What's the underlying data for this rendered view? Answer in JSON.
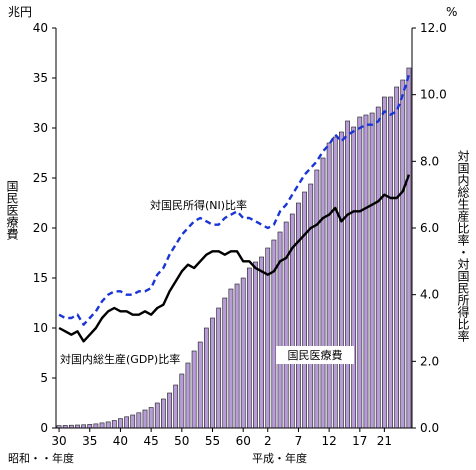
{
  "chart_data": {
    "type": "bar",
    "left_axis": {
      "unit": "兆円",
      "label": "国民医療費",
      "range": [
        0,
        40
      ],
      "ticks": [
        "0",
        "5",
        "10",
        "15",
        "20",
        "25",
        "30",
        "35",
        "40"
      ]
    },
    "right_axis": {
      "unit": "%",
      "label": "対国内総生産比率・対国民所得比率",
      "range": [
        0,
        12
      ],
      "ticks": [
        "0.0",
        "2.0",
        "4.0",
        "6.0",
        "8.0",
        "10.0",
        "12.0"
      ]
    },
    "x_axis": {
      "showa_label": "昭和・・年度",
      "heisei_label": "平成・年度",
      "ticks": [
        "30",
        "35",
        "40",
        "45",
        "50",
        "55",
        "60",
        "2",
        "7",
        "12",
        "17",
        "21"
      ]
    },
    "series": [
      {
        "name": "国民医療費",
        "axis": "left",
        "type": "bar",
        "color": "#b79cd8",
        "values": [
          0.24,
          0.26,
          0.28,
          0.3,
          0.32,
          0.36,
          0.41,
          0.51,
          0.61,
          0.75,
          0.94,
          1.12,
          1.3,
          1.52,
          1.8,
          2.05,
          2.5,
          2.9,
          3.5,
          4.3,
          5.4,
          6.5,
          7.7,
          8.6,
          10.0,
          11.0,
          12.0,
          13.0,
          13.9,
          14.4,
          15.0,
          16.0,
          16.6,
          17.1,
          18.0,
          18.8,
          19.6,
          20.6,
          21.4,
          22.5,
          23.6,
          24.4,
          25.8,
          27.0,
          28.5,
          29.1,
          29.6,
          30.7,
          30.1,
          31.1,
          31.3,
          31.5,
          32.1,
          33.1,
          33.1,
          34.1,
          34.8,
          36.0
        ],
        "label": "国民医療費"
      },
      {
        "name": "対国内総生産(GDP)比率",
        "axis": "right",
        "type": "line",
        "color": "#000000",
        "label": "対国内総生産(GDP)比率",
        "values": [
          3.0,
          2.9,
          2.8,
          2.9,
          2.6,
          2.8,
          3.0,
          3.3,
          3.5,
          3.6,
          3.5,
          3.5,
          3.4,
          3.4,
          3.5,
          3.4,
          3.6,
          3.7,
          4.1,
          4.4,
          4.7,
          4.9,
          4.8,
          5.0,
          5.2,
          5.3,
          5.3,
          5.2,
          5.3,
          5.3,
          5.0,
          5.0,
          4.8,
          4.7,
          4.6,
          4.7,
          5.0,
          5.1,
          5.4,
          5.6,
          5.8,
          6.0,
          6.1,
          6.3,
          6.4,
          6.6,
          6.2,
          6.4,
          6.5,
          6.5,
          6.6,
          6.7,
          6.8,
          7.0,
          6.9,
          6.9,
          7.1,
          7.6
        ]
      },
      {
        "name": "対国民所得(NI)比率",
        "axis": "right",
        "type": "line",
        "color": "#1a35d6",
        "dashed": true,
        "label": "対国民所得(NI)比率",
        "values": [
          3.4,
          3.3,
          3.3,
          3.4,
          3.1,
          3.3,
          3.5,
          3.8,
          4.0,
          4.1,
          4.1,
          4.0,
          4.0,
          4.1,
          4.1,
          4.2,
          4.6,
          4.8,
          5.2,
          5.5,
          5.8,
          6.0,
          6.2,
          6.3,
          6.2,
          6.1,
          6.1,
          6.3,
          6.4,
          6.5,
          6.3,
          6.3,
          6.2,
          6.1,
          6.0,
          6.1,
          6.5,
          6.7,
          7.0,
          7.3,
          7.6,
          7.8,
          8.0,
          8.3,
          8.5,
          8.8,
          8.6,
          8.8,
          8.9,
          9.0,
          9.1,
          9.1,
          9.2,
          9.5,
          9.4,
          9.5,
          10.0,
          10.6
        ]
      }
    ]
  }
}
